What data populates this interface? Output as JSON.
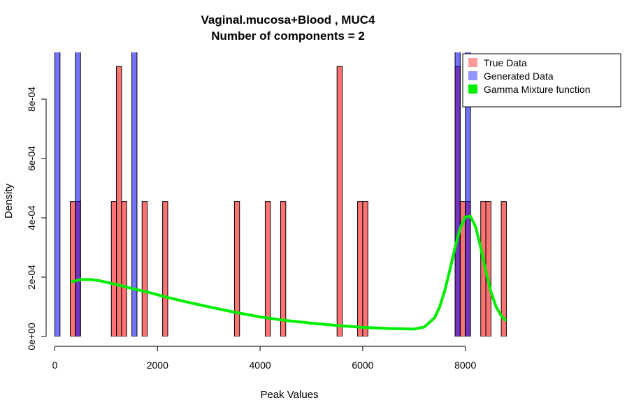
{
  "chart_data": {
    "type": "bar",
    "title": "Vaginal.mucosa+Blood , MUC4",
    "subtitle": "Number of components =  2",
    "xlabel": "Peak Values",
    "ylabel": "Density",
    "xlim": [
      -100,
      8800
    ],
    "ylim": [
      0,
      0.00093
    ],
    "x_ticks": [
      0,
      2000,
      4000,
      6000,
      8000
    ],
    "x_tick_labels": [
      "0",
      "2000",
      "4000",
      "6000",
      "8000"
    ],
    "y_ticks": [
      0,
      0.0002,
      0.0004,
      0.0006,
      0.0008
    ],
    "y_tick_labels": [
      "0e+00",
      "2e-04",
      "4e-04",
      "6e-04",
      "8e-04"
    ],
    "bin_width": 100,
    "series": [
      {
        "name": "True Data",
        "color": "#ff6666",
        "bins": [
          {
            "x0": 300,
            "x1": 400,
            "density": 0.000455
          },
          {
            "x0": 400,
            "x1": 500,
            "density": 0.000455
          },
          {
            "x0": 1100,
            "x1": 1200,
            "density": 0.000455
          },
          {
            "x0": 1200,
            "x1": 1300,
            "density": 0.00091
          },
          {
            "x0": 1300,
            "x1": 1400,
            "density": 0.000455
          },
          {
            "x0": 1700,
            "x1": 1800,
            "density": 0.000455
          },
          {
            "x0": 2100,
            "x1": 2200,
            "density": 0.000455
          },
          {
            "x0": 3500,
            "x1": 3600,
            "density": 0.000455
          },
          {
            "x0": 4100,
            "x1": 4200,
            "density": 0.000455
          },
          {
            "x0": 4400,
            "x1": 4500,
            "density": 0.000455
          },
          {
            "x0": 5500,
            "x1": 5600,
            "density": 0.00091
          },
          {
            "x0": 5900,
            "x1": 6000,
            "density": 0.000455
          },
          {
            "x0": 6000,
            "x1": 6100,
            "density": 0.000455
          },
          {
            "x0": 7800,
            "x1": 7900,
            "density": 0.00091
          },
          {
            "x0": 7900,
            "x1": 8000,
            "density": 0.000455
          },
          {
            "x0": 8000,
            "x1": 8100,
            "density": 0.000455
          },
          {
            "x0": 8300,
            "x1": 8400,
            "density": 0.000455
          },
          {
            "x0": 8400,
            "x1": 8500,
            "density": 0.000455
          },
          {
            "x0": 8700,
            "x1": 8800,
            "density": 0.000455
          }
        ]
      },
      {
        "name": "Generated Data",
        "color": "#5a5aff",
        "bins": [
          {
            "x0": 0,
            "x1": 100,
            "density": 0.0012
          },
          {
            "x0": 400,
            "x1": 500,
            "density": 0.0012
          },
          {
            "x0": 1500,
            "x1": 1600,
            "density": 0.0012
          },
          {
            "x0": 7800,
            "x1": 7900,
            "density": 0.0012
          },
          {
            "x0": 8000,
            "x1": 8100,
            "density": 0.0012
          }
        ]
      }
    ],
    "curve": {
      "name": "Gamma Mixture function",
      "color": "#00ee00",
      "x": [
        340,
        500,
        700,
        900,
        1100,
        1300,
        1500,
        1800,
        2100,
        2500,
        3000,
        3500,
        4000,
        4500,
        5000,
        5500,
        6000,
        6500,
        7000,
        7200,
        7400,
        7500,
        7600,
        7700,
        7800,
        7900,
        8000,
        8100,
        8200,
        8300,
        8400,
        8500,
        8600,
        8700,
        8780
      ],
      "y": [
        0.000185,
        0.000192,
        0.000192,
        0.000187,
        0.000179,
        0.000171,
        0.000162,
        0.00015,
        0.000136,
        0.000119,
        0.0001,
        8.2e-05,
        6.6e-05,
        5.4e-05,
        4.5e-05,
        3.7e-05,
        3.1e-05,
        2.7e-05,
        2.5e-05,
        3.2e-05,
        6.3e-05,
        0.0001,
        0.000155,
        0.000225,
        0.0003,
        0.000365,
        0.000403,
        0.000405,
        0.00037,
        0.0003,
        0.00022,
        0.00015,
        0.0001,
        7e-05,
        5.5e-05
      ]
    },
    "legend": {
      "position": "top-right",
      "entries": [
        {
          "label": "True Data",
          "color": "#ff6666"
        },
        {
          "label": "Generated Data",
          "color": "#5a5aff"
        },
        {
          "label": "Gamma Mixture function",
          "color": "#00ee00"
        }
      ]
    },
    "grid": false
  }
}
